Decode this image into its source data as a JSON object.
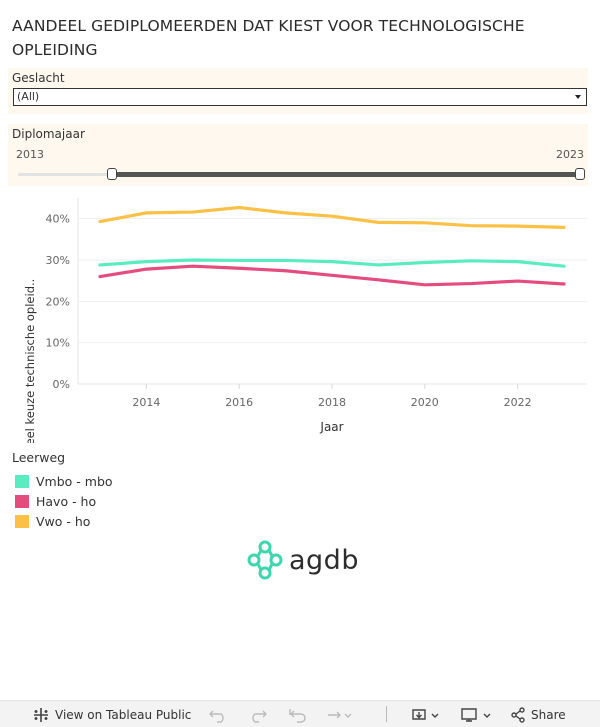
{
  "title": "AANDEEL GEDIPLOMEERDEN DAT KIEST VOOR TECHNOLOGISCHE OPLEIDING",
  "filters": {
    "geslacht": {
      "label": "Geslacht",
      "value": "(All)"
    },
    "diplomajaar": {
      "label": "Diplomajaar",
      "min": "2013",
      "max": "2023"
    }
  },
  "chart_data": {
    "type": "line",
    "title": "AANDEEL GEDIPLOMEERDEN DAT KIEST VOOR TECHNOLOGISCHE OPLEIDING",
    "xlabel": "Jaar",
    "ylabel": "Aandeel keuze technische opleid..",
    "x": [
      2013,
      2014,
      2015,
      2016,
      2017,
      2018,
      2019,
      2020,
      2021,
      2022,
      2023
    ],
    "xticks": [
      "2014",
      "2016",
      "2018",
      "2020",
      "2022"
    ],
    "yticks": [
      "0%",
      "10%",
      "20%",
      "30%",
      "40%"
    ],
    "ylim": [
      0,
      45
    ],
    "grid": true,
    "series": [
      {
        "name": "Vmbo - mbo",
        "color": "#59ecc1",
        "values": [
          28.8,
          29.6,
          30.0,
          29.9,
          29.9,
          29.6,
          28.8,
          29.4,
          29.8,
          29.6,
          28.5
        ]
      },
      {
        "name": "Havo - ho",
        "color": "#e54c7e",
        "values": [
          26.0,
          27.8,
          28.5,
          28.0,
          27.4,
          26.3,
          25.2,
          24.0,
          24.3,
          24.9,
          24.2
        ]
      },
      {
        "name": "Vwo - ho",
        "color": "#fac146",
        "values": [
          39.3,
          41.4,
          41.6,
          42.7,
          41.4,
          40.6,
          39.1,
          39.0,
          38.3,
          38.2,
          37.9
        ]
      }
    ]
  },
  "legend": {
    "title": "Leerweg"
  },
  "logo": {
    "text": "agdb"
  },
  "toolbar": {
    "view_label": "View on Tableau Public",
    "share_label": "Share"
  },
  "icons": {
    "tableau": "tableau-logo-icon",
    "undo": "undo-icon",
    "redo": "redo-icon",
    "revert": "revert-icon",
    "refresh": "refresh-icon",
    "download": "download-icon",
    "device": "device-preview-icon",
    "share": "share-icon"
  }
}
